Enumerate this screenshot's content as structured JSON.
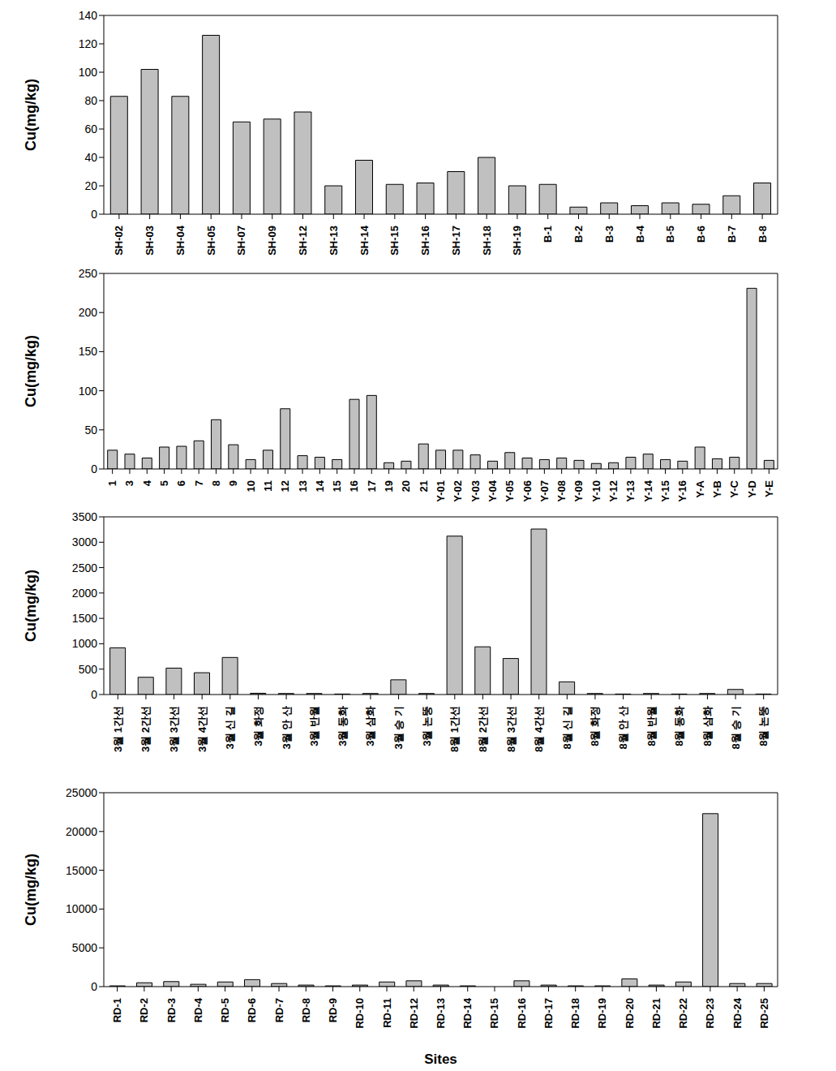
{
  "chart_data": [
    {
      "type": "bar",
      "y_label": "Cu(mg/kg)",
      "color": "#c0c0c0",
      "grid": false,
      "categories": [
        "SH-02",
        "SH-03",
        "SH-04",
        "SH-05",
        "SH-07",
        "SH-09",
        "SH-12",
        "SH-13",
        "SH-14",
        "SH-15",
        "SH-16",
        "SH-17",
        "SH-18",
        "SH-19",
        "B-1",
        "B-2",
        "B-3",
        "B-4",
        "B-5",
        "B-6",
        "B-7",
        "B-8"
      ],
      "values": [
        83,
        102,
        83,
        126,
        65,
        67,
        72,
        20,
        38,
        21,
        22,
        30,
        40,
        20,
        21,
        5,
        8,
        6,
        8,
        7,
        13,
        22
      ],
      "ylim": [
        0,
        140
      ],
      "yticks": [
        0,
        20,
        40,
        60,
        80,
        100,
        120,
        140
      ]
    },
    {
      "type": "bar",
      "y_label": "Cu(mg/kg)",
      "color": "#c0c0c0",
      "grid": false,
      "categories": [
        "1",
        "3",
        "4",
        "5",
        "6",
        "7",
        "8",
        "9",
        "10",
        "11",
        "12",
        "13",
        "14",
        "15",
        "16",
        "17",
        "19",
        "20",
        "21",
        "Y-01",
        "Y-02",
        "Y-03",
        "Y-04",
        "Y-05",
        "Y-06",
        "Y-07",
        "Y-08",
        "Y-09",
        "Y-10",
        "Y-12",
        "Y-13",
        "Y-14",
        "Y-15",
        "Y-16",
        "Y-A",
        "Y-B",
        "Y-C",
        "Y-D",
        "Y-E"
      ],
      "values": [
        24,
        19,
        14,
        28,
        29,
        36,
        63,
        31,
        12,
        24,
        77,
        17,
        15,
        12,
        89,
        94,
        8,
        10,
        32,
        24,
        24,
        18,
        10,
        21,
        14,
        12,
        14,
        11,
        7,
        8,
        15,
        19,
        12,
        10,
        28,
        13,
        15,
        231,
        11
      ],
      "ylim": [
        0,
        250
      ],
      "yticks": [
        0,
        50,
        100,
        150,
        200,
        250
      ]
    },
    {
      "type": "bar",
      "y_label": "Cu(mg/kg)",
      "color": "#c0c0c0",
      "grid": false,
      "categories": [
        "3월 1간선",
        "3월 2간선",
        "3월 3간선",
        "3월 4간선",
        "3월 신 길",
        "3월 화정",
        "3월 안 산",
        "3월 반월",
        "3월 동화",
        "3월 삼화",
        "3월 승 기",
        "3월 논뚱",
        "8월 1간선",
        "8월 2간선",
        "8월 3간선",
        "8월 4간선",
        "8월 신 길",
        "8월 화정",
        "8월 안 산",
        "8월 반월",
        "8월 동화",
        "8월 삼화",
        "8월 승 기",
        "8월 논뚱"
      ],
      "values": [
        920,
        340,
        520,
        430,
        730,
        25,
        20,
        20,
        10,
        20,
        290,
        20,
        3120,
        940,
        710,
        3260,
        250,
        20,
        10,
        20,
        10,
        20,
        100,
        10
      ],
      "ylim": [
        0,
        3500
      ],
      "yticks": [
        0,
        500,
        1000,
        1500,
        2000,
        2500,
        3000,
        3500
      ]
    },
    {
      "type": "bar",
      "y_label": "Cu(mg/kg)",
      "x_label": "Sites",
      "color": "#c0c0c0",
      "grid": false,
      "categories": [
        "RD-1",
        "RD-2",
        "RD-3",
        "RD-4",
        "RD-5",
        "RD-6",
        "RD-7",
        "RD-8",
        "RD-9",
        "RD-10",
        "RD-11",
        "RD-12",
        "RD-13",
        "RD-14",
        "RD-15",
        "RD-16",
        "RD-17",
        "RD-18",
        "RD-19",
        "RD-20",
        "RD-21",
        "RD-22",
        "RD-23",
        "RD-24",
        "RD-25"
      ],
      "values": [
        100,
        500,
        650,
        300,
        600,
        900,
        400,
        200,
        100,
        200,
        600,
        750,
        200,
        100,
        0,
        750,
        200,
        100,
        100,
        1000,
        200,
        600,
        22300,
        400,
        400
      ],
      "ylim": [
        0,
        25000
      ],
      "yticks": [
        0,
        5000,
        10000,
        15000,
        20000,
        25000
      ]
    }
  ]
}
